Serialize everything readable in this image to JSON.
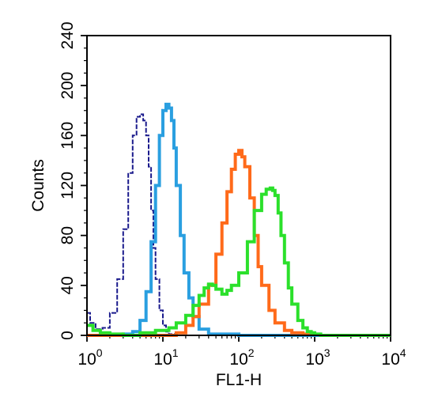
{
  "chart_data": {
    "type": "line",
    "title": "",
    "xlabel": "FL1-H",
    "ylabel": "Counts",
    "xscale": "log",
    "xlim": [
      1,
      10000
    ],
    "ylim": [
      0,
      240
    ],
    "x_ticks": [
      {
        "base": "10",
        "exp": "0",
        "value": 1
      },
      {
        "base": "10",
        "exp": "1",
        "value": 10
      },
      {
        "base": "10",
        "exp": "2",
        "value": 100
      },
      {
        "base": "10",
        "exp": "3",
        "value": 1000
      },
      {
        "base": "10",
        "exp": "4",
        "value": 10000
      }
    ],
    "y_ticks": [
      "0",
      "40",
      "80",
      "120",
      "160",
      "200",
      "240"
    ],
    "grid": false,
    "legend": "none",
    "series": [
      {
        "color": "#1a1a8c",
        "style": "dashed",
        "x": [
          1,
          1.1,
          1.3,
          1.6,
          2,
          2.5,
          3,
          3.5,
          4,
          4.5,
          5,
          5.5,
          6,
          6.5,
          7,
          7.5,
          8,
          9,
          10,
          11,
          12,
          14,
          16,
          20
        ],
        "y": [
          18,
          10,
          5,
          6,
          18,
          45,
          85,
          130,
          160,
          175,
          177,
          172,
          160,
          135,
          100,
          70,
          45,
          20,
          8,
          3,
          1,
          0,
          0,
          0
        ]
      },
      {
        "color": "#2a9fe0",
        "style": "solid",
        "x": [
          1,
          2,
          3,
          4,
          5,
          6,
          7,
          8,
          9,
          10,
          11,
          12,
          13,
          14,
          15,
          17,
          19,
          22,
          25,
          30,
          40,
          100,
          10000
        ],
        "y": [
          0,
          0,
          1,
          3,
          12,
          35,
          75,
          120,
          160,
          180,
          185,
          182,
          172,
          150,
          120,
          80,
          50,
          30,
          15,
          5,
          1,
          0,
          0
        ]
      },
      {
        "color": "#ff6a1a",
        "style": "solid",
        "x": [
          1,
          12,
          15,
          20,
          25,
          30,
          40,
          50,
          60,
          70,
          80,
          90,
          100,
          110,
          120,
          140,
          160,
          180,
          200,
          250,
          300,
          400,
          500,
          700,
          1000
        ],
        "y": [
          0,
          0,
          2,
          8,
          15,
          25,
          40,
          65,
          90,
          115,
          133,
          145,
          148,
          143,
          135,
          110,
          80,
          55,
          40,
          20,
          10,
          4,
          2,
          1,
          0
        ]
      },
      {
        "color": "#2be02b",
        "style": "solid",
        "x": [
          1,
          1.2,
          1.5,
          2,
          3,
          5,
          8,
          12,
          15,
          20,
          25,
          30,
          35,
          40,
          45,
          50,
          60,
          70,
          80,
          100,
          130,
          160,
          200,
          230,
          260,
          280,
          300,
          330,
          360,
          400,
          450,
          500,
          600,
          700,
          800,
          900,
          1000,
          1200,
          10000
        ],
        "y": [
          8,
          4,
          2,
          1,
          0,
          2,
          4,
          6,
          10,
          16,
          24,
          32,
          38,
          41,
          40,
          37,
          33,
          36,
          40,
          50,
          75,
          100,
          113,
          117,
          118,
          116,
          112,
          98,
          80,
          58,
          38,
          25,
          12,
          6,
          3,
          2,
          1,
          0,
          0
        ]
      }
    ]
  }
}
